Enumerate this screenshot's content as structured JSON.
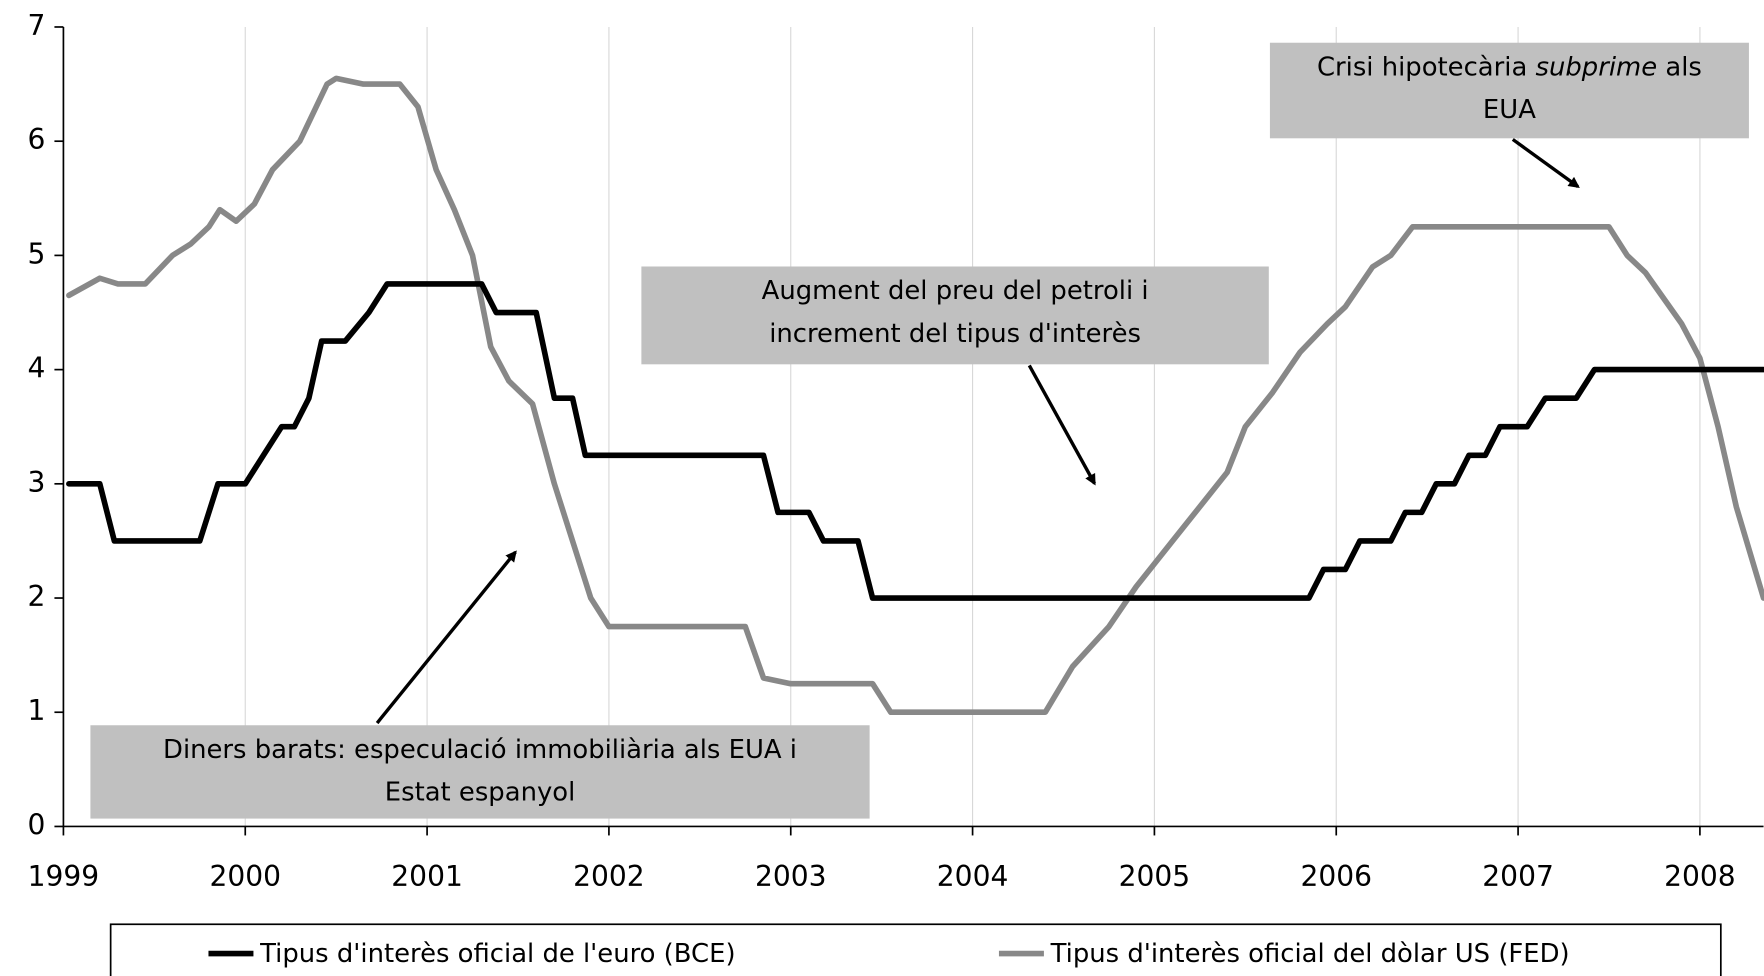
{
  "chart_data": {
    "type": "line",
    "xlim": [
      1999,
      2008.35
    ],
    "xticks": [
      1999,
      2000,
      2001,
      2002,
      2003,
      2004,
      2005,
      2006,
      2007,
      2008
    ],
    "ylim": [
      0,
      7
    ],
    "yticks": [
      0,
      1,
      2,
      3,
      4,
      5,
      6,
      7
    ],
    "grid": "x",
    "series": [
      {
        "name": "Tipus d'interès oficial de l'euro (BCE)",
        "color": "#000000",
        "x": [
          1999.03,
          1999.2,
          1999.28,
          1999.75,
          1999.85,
          2000.0,
          2000.1,
          2000.2,
          2000.27,
          2000.35,
          2000.42,
          2000.55,
          2000.68,
          2000.78,
          2001.3,
          2001.38,
          2001.6,
          2001.7,
          2001.8,
          2001.87,
          2002.85,
          2002.93,
          2003.1,
          2003.18,
          2003.37,
          2003.45,
          2005.85,
          2005.93,
          2006.05,
          2006.13,
          2006.3,
          2006.38,
          2006.47,
          2006.55,
          2006.65,
          2006.73,
          2006.82,
          2006.9,
          2007.05,
          2007.15,
          2007.32,
          2007.42,
          2008.35
        ],
        "values": [
          3.0,
          3.0,
          2.5,
          2.5,
          3.0,
          3.0,
          3.25,
          3.5,
          3.5,
          3.75,
          4.25,
          4.25,
          4.5,
          4.75,
          4.75,
          4.5,
          4.5,
          3.75,
          3.75,
          3.25,
          3.25,
          2.75,
          2.75,
          2.5,
          2.5,
          2.0,
          2.0,
          2.25,
          2.25,
          2.5,
          2.5,
          2.75,
          2.75,
          3.0,
          3.0,
          3.25,
          3.25,
          3.5,
          3.5,
          3.75,
          3.75,
          4.0,
          4.0
        ]
      },
      {
        "name": "Tipus d'interès oficial del dòlar US (FED)",
        "color": "#888888",
        "x": [
          1999.03,
          1999.2,
          1999.3,
          1999.45,
          1999.6,
          1999.7,
          1999.8,
          1999.86,
          1999.95,
          2000.05,
          2000.15,
          2000.3,
          2000.45,
          2000.5,
          2000.65,
          2000.85,
          2000.95,
          2001.05,
          2001.15,
          2001.25,
          2001.35,
          2001.45,
          2001.58,
          2001.7,
          2001.8,
          2001.9,
          2002.0,
          2002.2,
          2002.75,
          2002.85,
          2003.0,
          2003.45,
          2003.55,
          2004.0,
          2004.4,
          2004.55,
          2004.75,
          2004.9,
          2005.1,
          2005.3,
          2005.4,
          2005.5,
          2005.65,
          2005.8,
          2005.95,
          2006.05,
          2006.2,
          2006.3,
          2006.42,
          2007.5,
          2007.6,
          2007.7,
          2007.9,
          2008.0,
          2008.1,
          2008.2,
          2008.35
        ],
        "values": [
          4.65,
          4.8,
          4.75,
          4.75,
          5.0,
          5.1,
          5.25,
          5.4,
          5.3,
          5.45,
          5.75,
          6.0,
          6.5,
          6.55,
          6.5,
          6.5,
          6.3,
          5.75,
          5.4,
          5.0,
          4.2,
          3.9,
          3.7,
          3.0,
          2.5,
          2.0,
          1.75,
          1.75,
          1.75,
          1.3,
          1.25,
          1.25,
          1.0,
          1.0,
          1.0,
          1.4,
          1.75,
          2.1,
          2.5,
          2.9,
          3.1,
          3.5,
          3.8,
          4.15,
          4.4,
          4.55,
          4.9,
          5.0,
          5.25,
          5.25,
          5.0,
          4.85,
          4.4,
          4.1,
          3.5,
          2.8,
          2.0
        ]
      }
    ],
    "annotations": [
      {
        "lines": [
          [
            {
              "text": "Crisi hipotecària "
            },
            {
              "text": "subprime",
              "italic": true
            },
            {
              "text": " als"
            }
          ],
          [
            {
              "text": "EUA"
            }
          ]
        ]
      },
      {
        "lines": [
          [
            {
              "text": "Augment del preu del petroli i"
            }
          ],
          [
            {
              "text": "increment del tipus d'interès"
            }
          ]
        ]
      },
      {
        "lines": [
          [
            {
              "text": "Diners barats: especulació immobiliària als EUA i"
            }
          ],
          [
            {
              "text": "Estat espanyol"
            }
          ]
        ]
      }
    ]
  }
}
